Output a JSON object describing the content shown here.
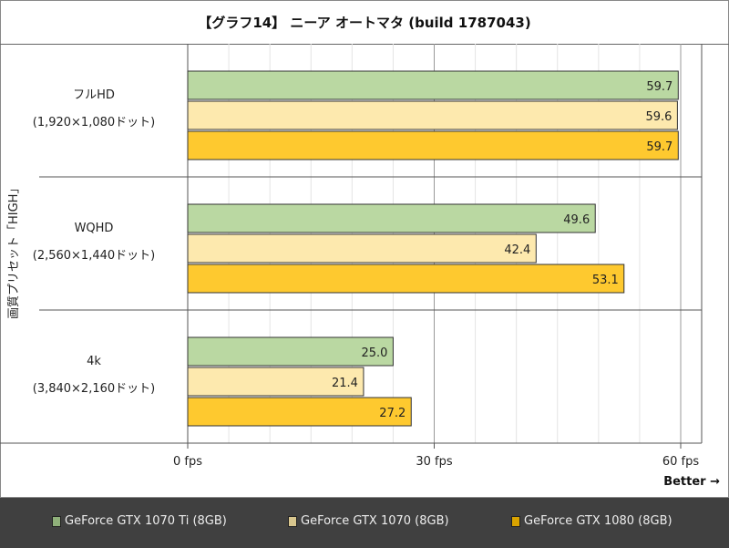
{
  "chart_data": {
    "type": "bar",
    "orientation": "horizontal",
    "title": "【グラフ14】 ニーア オートマタ (build 1787043)",
    "ylabel": "画質プリセット「HIGH」",
    "categories": [
      {
        "name": "フルHD",
        "sub": "(1,920×1,080ドット)"
      },
      {
        "name": "WQHD",
        "sub": "(2,560×1,440ドット)"
      },
      {
        "name": "4k",
        "sub": "(3,840×2,160ドット)"
      }
    ],
    "series": [
      {
        "name": "GeForce GTX 1070 Ti (8GB)",
        "color": "#bad8a2",
        "legend_color": "#8fb07a",
        "values": [
          59.7,
          49.6,
          25.0
        ]
      },
      {
        "name": "GeForce GTX 1070 (8GB)",
        "color": "#fde9ae",
        "legend_color": "#d8c68e",
        "values": [
          59.6,
          42.4,
          21.4
        ]
      },
      {
        "name": "GeForce GTX 1080 (8GB)",
        "color": "#fec92f",
        "legend_color": "#d9a300",
        "values": [
          59.7,
          53.1,
          27.2
        ]
      }
    ],
    "xlim": [
      0,
      60
    ],
    "xticks": [
      "0 fps",
      "30 fps",
      "60 fps"
    ],
    "xtick_values": [
      0,
      30,
      60
    ],
    "grid": true,
    "legend_position": "bottom",
    "annotation": "Better →"
  }
}
